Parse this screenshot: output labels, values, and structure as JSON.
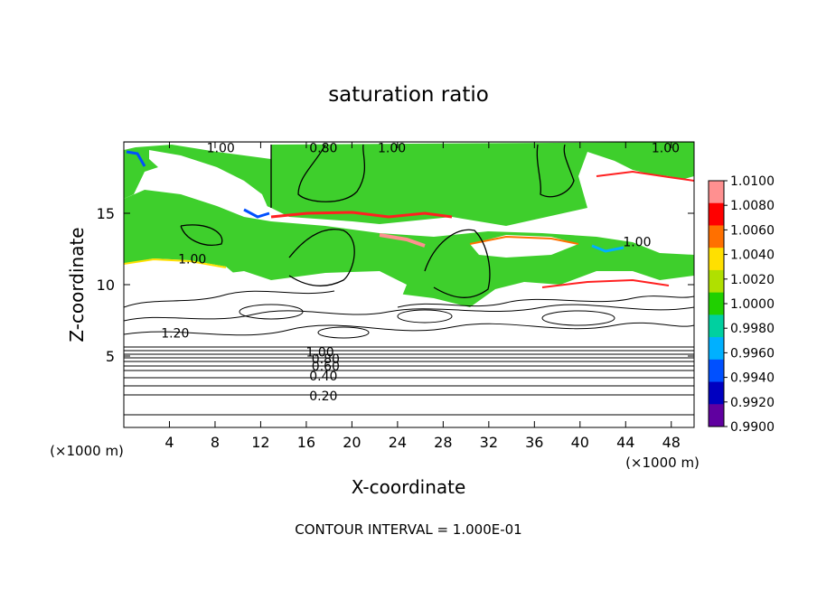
{
  "chart_data": {
    "type": "heatmap",
    "title": "saturation ratio",
    "xlabel": "X-coordinate",
    "ylabel": "Z-coordinate",
    "x_unit": "(×1000 m)",
    "x_unit_right": "(×1000 m)",
    "xlim": [
      0,
      50
    ],
    "ylim": [
      0,
      20
    ],
    "x_ticks": [
      4,
      8,
      12,
      16,
      20,
      24,
      28,
      32,
      36,
      40,
      44,
      48
    ],
    "y_ticks": [
      5,
      10,
      15
    ],
    "footer": "CONTOUR INTERVAL = 1.000E-01",
    "colorbar": {
      "labels": [
        "1.0100",
        "1.0080",
        "1.0060",
        "1.0040",
        "1.0020",
        "1.0000",
        "0.9980",
        "0.9960",
        "0.9940",
        "0.9920",
        "0.9900"
      ],
      "colors": [
        "#ff9090",
        "#ff0000",
        "#ff7000",
        "#ffe000",
        "#b0e000",
        "#20d000",
        "#00d0a0",
        "#00b0ff",
        "#0050ff",
        "#0000c0",
        "#6000a0"
      ]
    },
    "contour_labels": [
      {
        "text": "1.00",
        "x": 8.5,
        "z": 19.6
      },
      {
        "text": "0.80",
        "x": 17.5,
        "z": 19.6
      },
      {
        "text": "1.00",
        "x": 23.5,
        "z": 19.6
      },
      {
        "text": "1.00",
        "x": 47.5,
        "z": 19.6
      },
      {
        "text": "1.00",
        "x": 6.0,
        "z": 11.8
      },
      {
        "text": "1.00",
        "x": 45.0,
        "z": 13.0
      },
      {
        "text": "1.20",
        "x": 4.5,
        "z": 6.6
      },
      {
        "text": "1.00",
        "x": 17.2,
        "z": 5.3
      },
      {
        "text": "0.80",
        "x": 17.7,
        "z": 4.8
      },
      {
        "text": "0.60",
        "x": 17.7,
        "z": 4.3
      },
      {
        "text": "0.40",
        "x": 17.5,
        "z": 3.6
      },
      {
        "text": "0.20",
        "x": 17.5,
        "z": 2.2
      }
    ]
  }
}
